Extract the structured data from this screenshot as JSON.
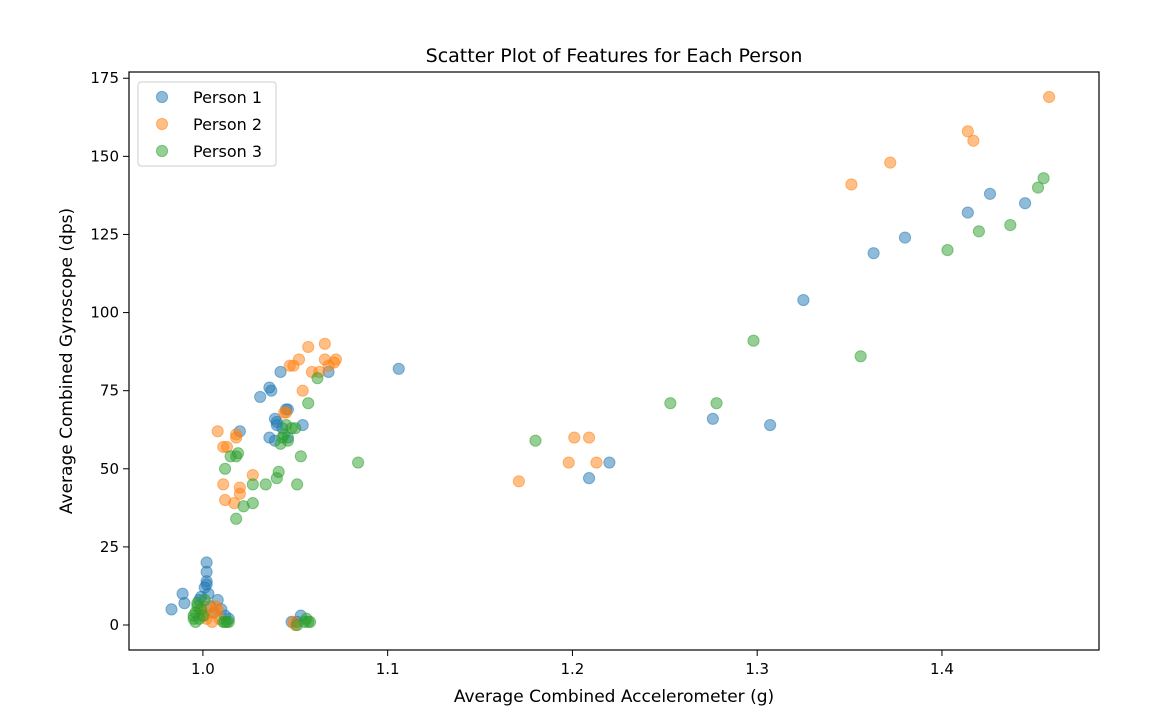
{
  "chart_data": {
    "type": "scatter",
    "title": "Scatter Plot of Features for Each Person",
    "xlabel": "Average Combined Accelerometer (g)",
    "ylabel": "Average Combined Gyroscope (dps)",
    "xlim": [
      0.96,
      1.485
    ],
    "ylim": [
      -8,
      177
    ],
    "xticks": [
      1.0,
      1.1,
      1.2,
      1.3,
      1.4
    ],
    "xtick_labels": [
      "1.0",
      "1.1",
      "1.2",
      "1.3",
      "1.4"
    ],
    "yticks": [
      0,
      25,
      50,
      75,
      100,
      125,
      150,
      175
    ],
    "ytick_labels": [
      "0",
      "25",
      "50",
      "75",
      "100",
      "125",
      "150",
      "175"
    ],
    "grid": false,
    "legend_position": "top-left",
    "series": [
      {
        "name": "Person 1",
        "color": "#1f77b4",
        "points": [
          [
            0.983,
            5
          ],
          [
            0.989,
            10
          ],
          [
            0.99,
            7
          ],
          [
            0.998,
            8
          ],
          [
            0.999,
            9
          ],
          [
            1.001,
            12
          ],
          [
            1.002,
            13
          ],
          [
            1.002,
            14
          ],
          [
            1.002,
            17
          ],
          [
            1.002,
            20
          ],
          [
            1.003,
            10
          ],
          [
            1.004,
            6
          ],
          [
            1.006,
            4
          ],
          [
            1.008,
            8
          ],
          [
            1.01,
            5
          ],
          [
            1.012,
            3
          ],
          [
            1.014,
            2
          ],
          [
            1.02,
            62
          ],
          [
            1.031,
            73
          ],
          [
            1.036,
            76
          ],
          [
            1.037,
            75
          ],
          [
            1.036,
            60
          ],
          [
            1.039,
            59
          ],
          [
            1.039,
            66
          ],
          [
            1.04,
            64
          ],
          [
            1.04,
            65
          ],
          [
            1.042,
            81
          ],
          [
            1.043,
            63
          ],
          [
            1.045,
            69
          ],
          [
            1.046,
            69
          ],
          [
            1.046,
            60
          ],
          [
            1.048,
            1
          ],
          [
            1.051,
            1
          ],
          [
            1.053,
            3
          ],
          [
            1.054,
            64
          ],
          [
            1.068,
            81
          ],
          [
            1.106,
            82
          ],
          [
            1.209,
            47
          ],
          [
            1.22,
            52
          ],
          [
            1.276,
            66
          ],
          [
            1.307,
            64
          ],
          [
            1.325,
            104
          ],
          [
            1.363,
            119
          ],
          [
            1.38,
            124
          ],
          [
            1.414,
            132
          ],
          [
            1.426,
            138
          ],
          [
            1.445,
            135
          ]
        ]
      },
      {
        "name": "Person 2",
        "color": "#ff7f0e",
        "points": [
          [
            0.998,
            5
          ],
          [
            1.0,
            4
          ],
          [
            1.001,
            3
          ],
          [
            1.002,
            2
          ],
          [
            1.003,
            6
          ],
          [
            1.005,
            1
          ],
          [
            1.006,
            4
          ],
          [
            1.007,
            6
          ],
          [
            1.008,
            5
          ],
          [
            1.009,
            2
          ],
          [
            1.008,
            62
          ],
          [
            1.011,
            45
          ],
          [
            1.011,
            57
          ],
          [
            1.012,
            40
          ],
          [
            1.013,
            57
          ],
          [
            1.017,
            39
          ],
          [
            1.018,
            60
          ],
          [
            1.018,
            61
          ],
          [
            1.02,
            42
          ],
          [
            1.02,
            44
          ],
          [
            1.027,
            48
          ],
          [
            1.044,
            68
          ],
          [
            1.045,
            68
          ],
          [
            1.047,
            83
          ],
          [
            1.049,
            83
          ],
          [
            1.049,
            1
          ],
          [
            1.05,
            0
          ],
          [
            1.052,
            85
          ],
          [
            1.054,
            75
          ],
          [
            1.057,
            89
          ],
          [
            1.059,
            81
          ],
          [
            1.063,
            81
          ],
          [
            1.066,
            90
          ],
          [
            1.066,
            85
          ],
          [
            1.068,
            83
          ],
          [
            1.071,
            84
          ],
          [
            1.072,
            85
          ],
          [
            1.171,
            46
          ],
          [
            1.198,
            52
          ],
          [
            1.201,
            60
          ],
          [
            1.209,
            60
          ],
          [
            1.213,
            52
          ],
          [
            1.351,
            141
          ],
          [
            1.372,
            148
          ],
          [
            1.414,
            158
          ],
          [
            1.417,
            155
          ],
          [
            1.458,
            169
          ]
        ]
      },
      {
        "name": "Person 3",
        "color": "#2ca02c",
        "points": [
          [
            0.995,
            2
          ],
          [
            0.995,
            3
          ],
          [
            0.996,
            1
          ],
          [
            0.996,
            4
          ],
          [
            0.997,
            6
          ],
          [
            0.997,
            7
          ],
          [
            0.998,
            2
          ],
          [
            0.999,
            5
          ],
          [
            1.0,
            3
          ],
          [
            1.001,
            8
          ],
          [
            1.011,
            1
          ],
          [
            1.012,
            1
          ],
          [
            1.013,
            1
          ],
          [
            1.014,
            1
          ],
          [
            1.012,
            50
          ],
          [
            1.015,
            54
          ],
          [
            1.018,
            54
          ],
          [
            1.018,
            34
          ],
          [
            1.019,
            55
          ],
          [
            1.022,
            38
          ],
          [
            1.027,
            39
          ],
          [
            1.027,
            45
          ],
          [
            1.034,
            45
          ],
          [
            1.04,
            47
          ],
          [
            1.041,
            49
          ],
          [
            1.042,
            58
          ],
          [
            1.043,
            60
          ],
          [
            1.044,
            61
          ],
          [
            1.045,
            64
          ],
          [
            1.046,
            59
          ],
          [
            1.048,
            63
          ],
          [
            1.05,
            63
          ],
          [
            1.051,
            45
          ],
          [
            1.053,
            54
          ],
          [
            1.051,
            0
          ],
          [
            1.055,
            1
          ],
          [
            1.056,
            2
          ],
          [
            1.057,
            1
          ],
          [
            1.058,
            1
          ],
          [
            1.057,
            71
          ],
          [
            1.062,
            79
          ],
          [
            1.084,
            52
          ],
          [
            1.18,
            59
          ],
          [
            1.253,
            71
          ],
          [
            1.278,
            71
          ],
          [
            1.298,
            91
          ],
          [
            1.356,
            86
          ],
          [
            1.403,
            120
          ],
          [
            1.42,
            126
          ],
          [
            1.437,
            128
          ],
          [
            1.452,
            140
          ],
          [
            1.455,
            143
          ]
        ]
      }
    ]
  }
}
